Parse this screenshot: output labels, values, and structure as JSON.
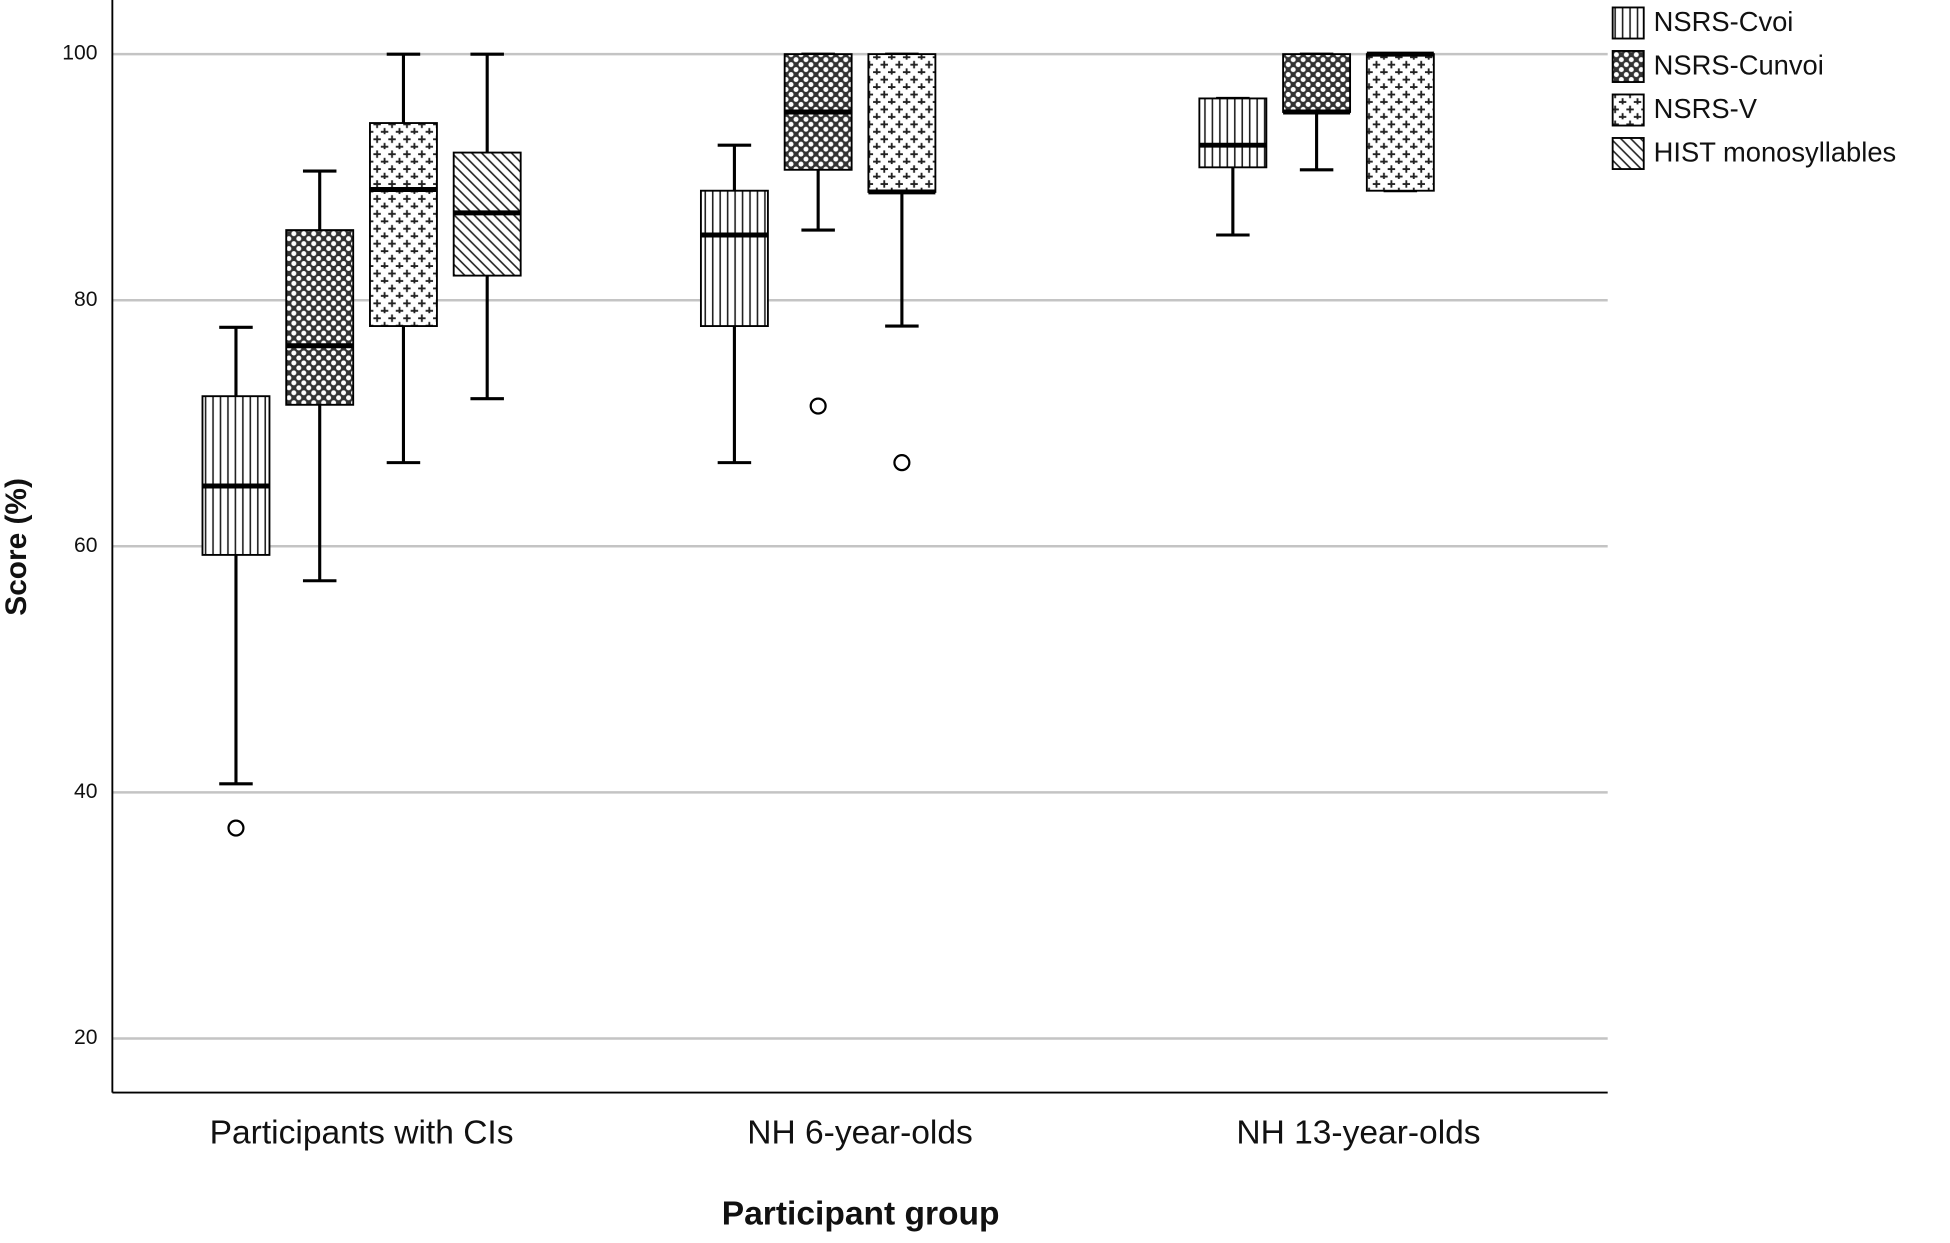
{
  "chart_data": {
    "type": "box",
    "x_label": "Participant group",
    "y_label": "Score (%)",
    "categories": [
      "Participants with CIs",
      "NH 6-year-olds",
      "NH 13-year-olds"
    ],
    "ylim": [
      15.6,
      104.4
    ],
    "yticks": [
      20,
      40,
      60,
      80,
      100
    ],
    "grid": true,
    "legend": "top-right",
    "series": [
      {
        "name": "NSRS-Cvoi",
        "pattern": "vertical",
        "boxes": [
          {
            "low": 40.7,
            "q1": 59.3,
            "median": 64.9,
            "q3": 72.2,
            "high": 77.8,
            "outliers": [
              37.1
            ]
          },
          {
            "low": 66.8,
            "q1": 77.9,
            "median": 85.3,
            "q3": 88.9,
            "high": 92.6
          },
          {
            "low": 85.3,
            "q1": 90.8,
            "median": 92.6,
            "q3": 96.4,
            "high": 96.4
          }
        ]
      },
      {
        "name": "NSRS-Cunvoi",
        "pattern": "checker",
        "boxes": [
          {
            "low": 57.2,
            "q1": 71.5,
            "median": 76.3,
            "q3": 85.7,
            "high": 90.5
          },
          {
            "low": 85.7,
            "q1": 90.6,
            "median": 95.3,
            "q3": 100,
            "high": 100,
            "outliers": [
              71.4
            ]
          },
          {
            "low": 90.6,
            "q1": 95.3,
            "median": 95.3,
            "q3": 100,
            "high": 100
          }
        ]
      },
      {
        "name": "NSRS-V",
        "pattern": "plus",
        "boxes": [
          {
            "low": 66.8,
            "q1": 77.9,
            "median": 89.0,
            "q3": 94.4,
            "high": 100
          },
          {
            "low": 77.9,
            "q1": 88.8,
            "median": 88.8,
            "q3": 100,
            "high": 100,
            "outliers": [
              66.8
            ]
          },
          {
            "low": 88.9,
            "q1": 88.9,
            "median": 100,
            "q3": 100,
            "high": 100
          }
        ]
      },
      {
        "name": "HIST monosyllables",
        "pattern": "diagonal",
        "boxes": [
          {
            "low": 72.0,
            "q1": 82.0,
            "median": 87.1,
            "q3": 92.0,
            "high": 100
          },
          null,
          null
        ]
      }
    ]
  }
}
